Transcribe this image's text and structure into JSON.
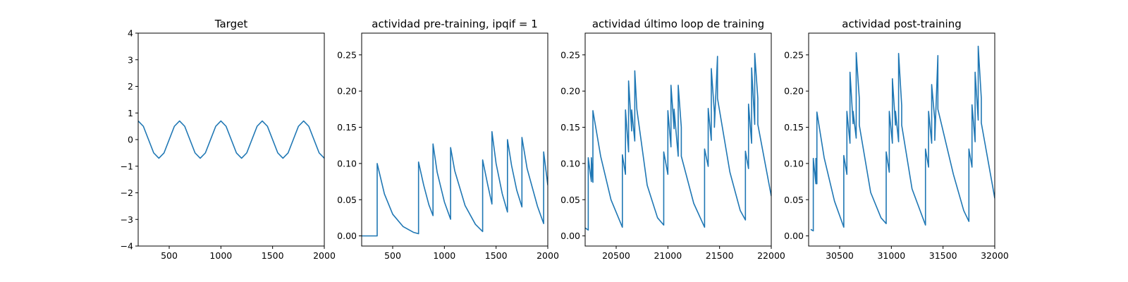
{
  "colors": {
    "series": "#1f77b4"
  },
  "chart_data": [
    {
      "type": "line",
      "title": "Target",
      "xlabel": "",
      "ylabel": "",
      "xlim": [
        200,
        2000
      ],
      "ylim": [
        -4,
        4
      ],
      "xticks": [
        500,
        1000,
        1500,
        2000
      ],
      "yticks": [
        -4,
        -3,
        -2,
        -1,
        0,
        1,
        2,
        3,
        4
      ],
      "xtick_labels": [
        "500",
        "1000",
        "1500",
        "2000"
      ],
      "ytick_labels": [
        "−4",
        "−3",
        "−2",
        "−1",
        "0",
        "1",
        "2",
        "3",
        "4"
      ],
      "grid": false,
      "series": [
        {
          "x": [
            200,
            250,
            300,
            350,
            400,
            450,
            500,
            550,
            600,
            650,
            700,
            750,
            800,
            850,
            900,
            950,
            1000,
            1050,
            1100,
            1150,
            1200,
            1250,
            1300,
            1350,
            1400,
            1450,
            1500,
            1550,
            1600,
            1650,
            1700,
            1750,
            1800,
            1850,
            1900,
            1950,
            2000
          ],
          "values": [
            0.7,
            0.5,
            0.0,
            -0.5,
            -0.7,
            -0.5,
            0.0,
            0.5,
            0.7,
            0.5,
            0.0,
            -0.5,
            -0.7,
            -0.5,
            0.0,
            0.5,
            0.7,
            0.5,
            0.0,
            -0.5,
            -0.7,
            -0.5,
            0.0,
            0.5,
            0.7,
            0.5,
            0.0,
            -0.5,
            -0.7,
            -0.5,
            0.0,
            0.5,
            0.7,
            0.5,
            0.0,
            -0.5,
            -0.7
          ]
        }
      ]
    },
    {
      "type": "line",
      "title": "actividad pre-training, ipqif = 1",
      "xlabel": "",
      "ylabel": "",
      "xlim": [
        200,
        2000
      ],
      "ylim": [
        -0.014,
        0.28
      ],
      "xticks": [
        500,
        1000,
        1500,
        2000
      ],
      "yticks": [
        0.0,
        0.05,
        0.1,
        0.15,
        0.2,
        0.25
      ],
      "xtick_labels": [
        "500",
        "1000",
        "1500",
        "2000"
      ],
      "ytick_labels": [
        "0.00",
        "0.05",
        "0.10",
        "0.15",
        "0.20",
        "0.25"
      ],
      "grid": false,
      "series": [
        {
          "x": [
            200,
            350,
            350,
            420,
            500,
            600,
            700,
            750,
            750,
            800,
            850,
            890,
            890,
            930,
            1000,
            1060,
            1060,
            1100,
            1200,
            1300,
            1370,
            1370,
            1420,
            1460,
            1460,
            1500,
            1560,
            1610,
            1610,
            1650,
            1700,
            1750,
            1750,
            1800,
            1900,
            1960,
            1960,
            2000
          ],
          "values": [
            0.0,
            0.0,
            0.1,
            0.058,
            0.03,
            0.013,
            0.005,
            0.003,
            0.102,
            0.07,
            0.043,
            0.028,
            0.127,
            0.088,
            0.047,
            0.023,
            0.122,
            0.09,
            0.042,
            0.016,
            0.006,
            0.105,
            0.07,
            0.044,
            0.144,
            0.1,
            0.058,
            0.033,
            0.133,
            0.097,
            0.063,
            0.04,
            0.136,
            0.093,
            0.041,
            0.017,
            0.116,
            0.07
          ]
        }
      ]
    },
    {
      "type": "line",
      "title": "actividad último loop de training",
      "xlabel": "",
      "ylabel": "",
      "xlim": [
        20200,
        22000
      ],
      "ylim": [
        -0.014,
        0.28
      ],
      "xticks": [
        20500,
        21000,
        21500,
        22000
      ],
      "yticks": [
        0.0,
        0.05,
        0.1,
        0.15,
        0.2,
        0.25
      ],
      "xtick_labels": [
        "20500",
        "21000",
        "21500",
        "22000"
      ],
      "ytick_labels": [
        "0.00",
        "0.05",
        "0.10",
        "0.15",
        "0.20",
        "0.25"
      ],
      "grid": false,
      "series": [
        {
          "x": [
            20200,
            20230,
            20230,
            20260,
            20260,
            20275,
            20275,
            20350,
            20450,
            20560,
            20560,
            20590,
            20590,
            20620,
            20620,
            20650,
            20650,
            20680,
            20680,
            20700,
            20700,
            20800,
            20900,
            20960,
            20960,
            21000,
            21000,
            21030,
            21030,
            21060,
            21060,
            21100,
            21100,
            21130,
            21130,
            21250,
            21355,
            21355,
            21390,
            21390,
            21420,
            21420,
            21450,
            21450,
            21480,
            21480,
            21600,
            21700,
            21750,
            21750,
            21780,
            21780,
            21810,
            21810,
            21840,
            21840,
            21870,
            21870,
            22000
          ],
          "values": [
            0.011,
            0.008,
            0.108,
            0.075,
            0.108,
            0.074,
            0.173,
            0.11,
            0.05,
            0.012,
            0.112,
            0.085,
            0.174,
            0.116,
            0.214,
            0.145,
            0.174,
            0.131,
            0.228,
            0.175,
            0.175,
            0.07,
            0.025,
            0.015,
            0.116,
            0.085,
            0.173,
            0.123,
            0.208,
            0.148,
            0.175,
            0.11,
            0.208,
            0.15,
            0.11,
            0.045,
            0.012,
            0.12,
            0.096,
            0.176,
            0.132,
            0.231,
            0.17,
            0.15,
            0.248,
            0.19,
            0.088,
            0.035,
            0.022,
            0.117,
            0.093,
            0.182,
            0.128,
            0.232,
            0.154,
            0.252,
            0.19,
            0.154,
            0.055
          ]
        }
      ]
    },
    {
      "type": "line",
      "title": "actividad post-training",
      "xlabel": "",
      "ylabel": "",
      "xlim": [
        30200,
        32000
      ],
      "ylim": [
        -0.014,
        0.28
      ],
      "xticks": [
        30500,
        31000,
        31500,
        32000
      ],
      "yticks": [
        0.0,
        0.05,
        0.1,
        0.15,
        0.2,
        0.25
      ],
      "xtick_labels": [
        "30500",
        "31000",
        "31500",
        "32000"
      ],
      "ytick_labels": [
        "0.00",
        "0.05",
        "0.10",
        "0.15",
        "0.20",
        "0.25"
      ],
      "grid": false,
      "series": [
        {
          "x": [
            30220,
            30245,
            30245,
            30270,
            30270,
            30280,
            30280,
            30350,
            30450,
            30540,
            30540,
            30570,
            30570,
            30600,
            30600,
            30630,
            30630,
            30660,
            30660,
            30690,
            30690,
            30800,
            30900,
            30950,
            30950,
            30980,
            30980,
            31010,
            31010,
            31040,
            31040,
            31070,
            31070,
            31100,
            31100,
            31200,
            31330,
            31330,
            31360,
            31360,
            31390,
            31390,
            31420,
            31420,
            31450,
            31450,
            31600,
            31700,
            31750,
            31750,
            31780,
            31780,
            31810,
            31810,
            31840,
            31840,
            31870,
            31870,
            32000
          ],
          "values": [
            0.009,
            0.007,
            0.107,
            0.072,
            0.107,
            0.072,
            0.171,
            0.108,
            0.048,
            0.012,
            0.111,
            0.085,
            0.172,
            0.128,
            0.226,
            0.155,
            0.172,
            0.135,
            0.253,
            0.19,
            0.153,
            0.06,
            0.025,
            0.017,
            0.116,
            0.088,
            0.172,
            0.128,
            0.217,
            0.153,
            0.172,
            0.13,
            0.252,
            0.18,
            0.153,
            0.065,
            0.015,
            0.12,
            0.095,
            0.172,
            0.128,
            0.209,
            0.16,
            0.132,
            0.249,
            0.175,
            0.085,
            0.035,
            0.02,
            0.12,
            0.095,
            0.181,
            0.13,
            0.226,
            0.16,
            0.262,
            0.19,
            0.156,
            0.052
          ]
        }
      ]
    }
  ]
}
